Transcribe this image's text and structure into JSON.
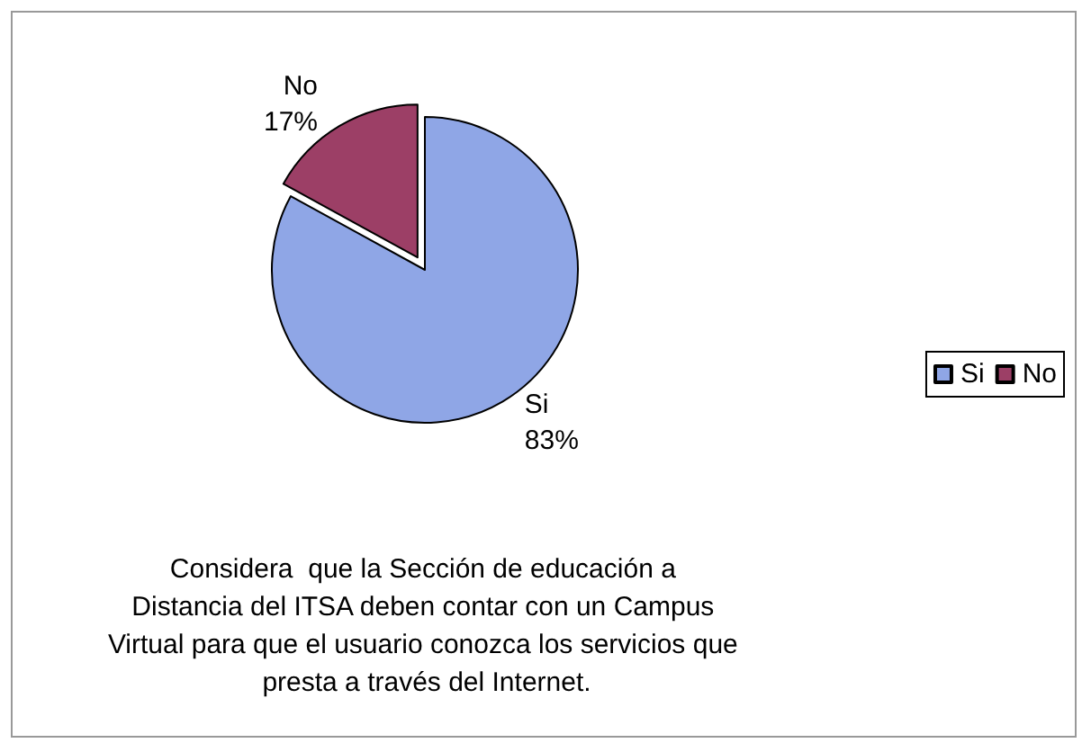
{
  "chart_data": {
    "type": "pie",
    "title": "Considera  que la Sección de educación a Distancia del ITSA deben contar con un Campus Virtual para que el usuario conozca los servicios que presta a través del Internet.",
    "categories": [
      "Si",
      "No"
    ],
    "values": [
      83,
      17
    ],
    "value_labels": [
      "83%",
      "17%"
    ],
    "colors": [
      "#8fa6e6",
      "#9c3f66"
    ],
    "legend": "right"
  }
}
